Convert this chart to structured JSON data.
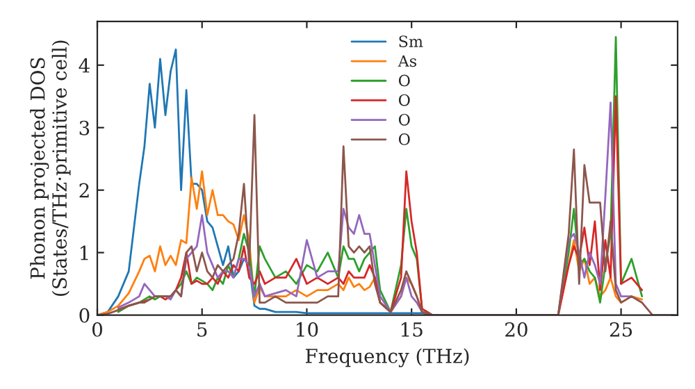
{
  "chart_data": {
    "type": "line",
    "xlabel": "Frequency (THz)",
    "ylabel": "Phonon projected DOS\n(States/THz·primitive cell)",
    "x": [
      0,
      0.5,
      1,
      1.5,
      2,
      2.25,
      2.5,
      2.75,
      3,
      3.25,
      3.5,
      3.75,
      4,
      4.25,
      4.5,
      4.75,
      5,
      5.25,
      5.5,
      5.75,
      6,
      6.25,
      6.5,
      6.75,
      7,
      7.25,
      7.5,
      7.75,
      8,
      8.5,
      9,
      9.5,
      10,
      10.5,
      11,
      11.5,
      11.75,
      12,
      12.25,
      12.5,
      12.75,
      13,
      13.25,
      13.5,
      14,
      14.5,
      14.75,
      15,
      15.25,
      15.5,
      16,
      22,
      22.5,
      22.75,
      23,
      23.25,
      23.5,
      23.75,
      24,
      24.25,
      24.5,
      24.75,
      25,
      25.5,
      26,
      26.5,
      27.5
    ],
    "series": [
      {
        "name": "Sm",
        "color": "#1f77b4",
        "values": [
          0,
          0.05,
          0.3,
          0.7,
          2.1,
          2.7,
          3.7,
          3.0,
          4.1,
          3.2,
          3.9,
          4.25,
          2.0,
          3.6,
          2.1,
          2.1,
          2.0,
          1.5,
          1.4,
          1.1,
          0.8,
          1.1,
          0.6,
          0.7,
          0.9,
          0.8,
          0.15,
          0.1,
          0.1,
          0.05,
          0.05,
          0.05,
          0.03,
          0.03,
          0.03,
          0.03,
          0.03,
          0.03,
          0.03,
          0.03,
          0.03,
          0.03,
          0.03,
          0.03,
          0.03,
          0.03,
          0.03,
          0.03,
          0.03,
          0.03,
          0,
          null,
          null,
          null,
          null,
          null,
          null,
          null,
          null,
          null,
          null,
          null,
          null,
          null,
          null,
          null,
          null
        ]
      },
      {
        "name": "As",
        "color": "#ff7f0e",
        "values": [
          0,
          0.05,
          0.15,
          0.35,
          0.7,
          0.9,
          0.95,
          0.7,
          1.1,
          0.8,
          0.95,
          0.8,
          1.2,
          1.15,
          2.2,
          1.7,
          2.3,
          1.6,
          2.0,
          1.6,
          1.6,
          1.5,
          1.45,
          1.2,
          1.6,
          1.2,
          0.2,
          0.45,
          0.3,
          0.3,
          0.3,
          0.4,
          0.3,
          0.4,
          0.4,
          0.5,
          0.4,
          0.6,
          0.45,
          0.5,
          0.4,
          0.45,
          0.6,
          0.2,
          0.05,
          0.3,
          0.6,
          0.5,
          0.3,
          0.05,
          0,
          0,
          0.8,
          1.2,
          0.7,
          0.9,
          0.5,
          0.6,
          0.3,
          0.4,
          0.6,
          0.3,
          0.2,
          0.3,
          0.25,
          null,
          null
        ]
      },
      {
        "name": "O",
        "color": "#2ca02c",
        "values": [
          null,
          null,
          0.05,
          0.15,
          0.2,
          0.25,
          0.3,
          0.25,
          0.3,
          0.3,
          0.3,
          0.4,
          0.5,
          0.7,
          0.5,
          0.6,
          0.55,
          0.5,
          0.4,
          0.6,
          0.5,
          0.8,
          0.6,
          0.9,
          1.3,
          1.0,
          0.3,
          1.1,
          0.9,
          0.6,
          0.7,
          0.5,
          0.8,
          0.7,
          1.0,
          0.6,
          1.1,
          0.9,
          0.9,
          0.7,
          0.9,
          1.0,
          1.1,
          0.4,
          0.05,
          0.8,
          1.7,
          1.1,
          0.9,
          0.1,
          0,
          0,
          1.0,
          1.7,
          0.8,
          0.9,
          0.7,
          0.6,
          0.2,
          0.8,
          1.3,
          4.45,
          0.5,
          0.9,
          0.3,
          null,
          null
        ]
      },
      {
        "name": "O",
        "color": "#d62728",
        "values": [
          null,
          null,
          0.09,
          0.15,
          0.2,
          0.22,
          0.25,
          0.3,
          0.3,
          0.25,
          0.3,
          0.4,
          0.6,
          1.0,
          0.5,
          0.55,
          0.5,
          0.5,
          0.6,
          0.5,
          0.7,
          0.6,
          0.8,
          0.7,
          1.1,
          0.6,
          0.5,
          0.7,
          0.5,
          0.6,
          0.6,
          0.9,
          0.5,
          0.6,
          0.5,
          0.6,
          0.5,
          0.7,
          0.6,
          0.6,
          0.6,
          0.8,
          0.6,
          0.2,
          0.05,
          0.6,
          2.3,
          1.5,
          1.0,
          0.1,
          0,
          0,
          0.8,
          1.1,
          0.9,
          1.4,
          0.8,
          1.5,
          0.4,
          1.2,
          0.6,
          3.5,
          0.5,
          0.6,
          0.4,
          null,
          null
        ]
      },
      {
        "name": "O",
        "color": "#9467bd",
        "values": [
          null,
          null,
          0.12,
          0.2,
          0.3,
          0.5,
          0.4,
          0.3,
          0.3,
          0.3,
          0.25,
          0.4,
          0.3,
          0.9,
          1.0,
          1.1,
          1.6,
          1.0,
          0.8,
          0.6,
          0.7,
          0.7,
          0.6,
          0.9,
          0.9,
          0.8,
          0.3,
          0.5,
          0.3,
          0.35,
          0.4,
          0.3,
          1.2,
          0.6,
          0.7,
          0.7,
          1.7,
          1.4,
          1.3,
          1.6,
          1.3,
          1.3,
          0.8,
          0.3,
          0.05,
          0.3,
          0.6,
          0.3,
          0.2,
          0.05,
          0,
          0,
          1.2,
          1.3,
          1.0,
          0.6,
          1.0,
          0.8,
          0.5,
          1.9,
          3.4,
          0.5,
          0.3,
          0.3,
          0.2,
          null,
          null
        ]
      },
      {
        "name": "O",
        "color": "#8c564b",
        "values": [
          0,
          0.02,
          0.08,
          0.15,
          0.2,
          0.2,
          0.25,
          0.3,
          0.3,
          0.3,
          0.3,
          0.4,
          0.3,
          1.0,
          1.1,
          0.7,
          1.0,
          0.7,
          0.6,
          0.8,
          0.7,
          0.8,
          0.9,
          1.3,
          2.1,
          0.8,
          3.2,
          0.2,
          0.2,
          0.3,
          0.2,
          0.2,
          0.2,
          0.2,
          0.3,
          0.3,
          2.7,
          1.1,
          1.0,
          1.1,
          1.0,
          1.1,
          0.5,
          0.2,
          0.05,
          0.4,
          0.7,
          0.5,
          0.3,
          0.05,
          0,
          0,
          1.3,
          2.65,
          0.5,
          2.4,
          1.8,
          1.8,
          1.8,
          0.7,
          1.5,
          0.4,
          0.2,
          0.3,
          0.2,
          0,
          0
        ]
      }
    ],
    "xlim": [
      0,
      27.7
    ],
    "ylim": [
      0,
      4.7
    ],
    "xticks": [
      0,
      5,
      10,
      15,
      20,
      25
    ],
    "yticks": [
      0,
      1,
      2,
      3,
      4
    ],
    "grid": false,
    "legend": "top",
    "line_style": "solid",
    "marker": "none"
  }
}
